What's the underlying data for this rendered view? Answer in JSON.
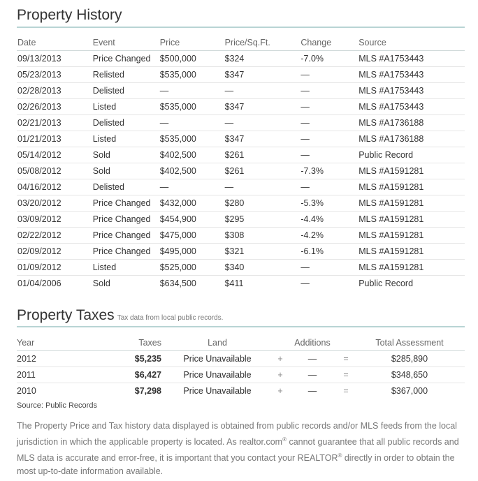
{
  "history": {
    "title": "Property History",
    "columns": [
      "Date",
      "Event",
      "Price",
      "Price/Sq.Ft.",
      "Change",
      "Source"
    ],
    "rows": [
      [
        "09/13/2013",
        "Price Changed",
        "$500,000",
        "$324",
        "-7.0%",
        "MLS #A1753443"
      ],
      [
        "05/23/2013",
        "Relisted",
        "$535,000",
        "$347",
        "—",
        "MLS #A1753443"
      ],
      [
        "02/28/2013",
        "Delisted",
        "—",
        "—",
        "—",
        "MLS #A1753443"
      ],
      [
        "02/26/2013",
        "Listed",
        "$535,000",
        "$347",
        "—",
        "MLS #A1753443"
      ],
      [
        "02/21/2013",
        "Delisted",
        "—",
        "—",
        "—",
        "MLS #A1736188"
      ],
      [
        "01/21/2013",
        "Listed",
        "$535,000",
        "$347",
        "—",
        "MLS #A1736188"
      ],
      [
        "05/14/2012",
        "Sold",
        "$402,500",
        "$261",
        "—",
        "Public Record"
      ],
      [
        "05/08/2012",
        "Sold",
        "$402,500",
        "$261",
        "-7.3%",
        "MLS #A1591281"
      ],
      [
        "04/16/2012",
        "Delisted",
        "—",
        "—",
        "—",
        "MLS #A1591281"
      ],
      [
        "03/20/2012",
        "Price Changed",
        "$432,000",
        "$280",
        "-5.3%",
        "MLS #A1591281"
      ],
      [
        "03/09/2012",
        "Price Changed",
        "$454,900",
        "$295",
        "-4.4%",
        "MLS #A1591281"
      ],
      [
        "02/22/2012",
        "Price Changed",
        "$475,000",
        "$308",
        "-4.2%",
        "MLS #A1591281"
      ],
      [
        "02/09/2012",
        "Price Changed",
        "$495,000",
        "$321",
        "-6.1%",
        "MLS #A1591281"
      ],
      [
        "01/09/2012",
        "Listed",
        "$525,000",
        "$340",
        "—",
        "MLS #A1591281"
      ],
      [
        "01/04/2006",
        "Sold",
        "$634,500",
        "$411",
        "—",
        "Public Record"
      ]
    ]
  },
  "taxes": {
    "title": "Property Taxes",
    "subtitle": "Tax data from local public records.",
    "columns": [
      "Year",
      "Taxes",
      "Land",
      "",
      "Additions",
      "",
      "Total Assessment"
    ],
    "rows": [
      [
        "2012",
        "$5,235",
        "Price Unavailable",
        "+",
        "—",
        "=",
        "$285,890"
      ],
      [
        "2011",
        "$6,427",
        "Price Unavailable",
        "+",
        "—",
        "=",
        "$348,650"
      ],
      [
        "2010",
        "$7,298",
        "Price Unavailable",
        "+",
        "—",
        "=",
        "$367,000"
      ]
    ],
    "source": "Source: Public Records"
  },
  "disclaimer": {
    "part1": "The Property Price and Tax history data displayed is obtained from public records and/or MLS feeds from the local jurisdiction in which the applicable property is located. As realtor.com",
    "reg1": "®",
    "part2": " cannot guarantee that all public records and MLS data is accurate and error-free, it is important that you contact your REALTOR",
    "reg2": "®",
    "part3": " directly in order to obtain the most up-to-date information available."
  }
}
